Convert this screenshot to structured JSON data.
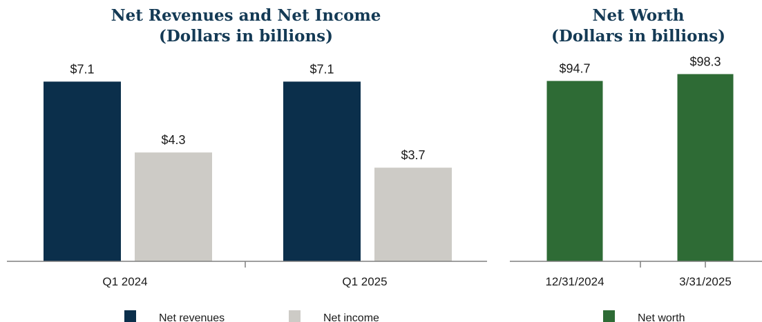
{
  "colors": {
    "net_revenues": "#0b2f4b",
    "net_income": "#cdcbc6",
    "net_worth": "#2e6b35",
    "axis": "#7f7f7f",
    "title": "#143a55"
  },
  "chart_data": [
    {
      "type": "bar",
      "title": "Net Revenues and Net Income",
      "subtitle": "(Dollars in billions)",
      "categories": [
        "Q1 2024",
        "Q1 2025"
      ],
      "series": [
        {
          "name": "Net revenues",
          "values": [
            7.1,
            7.1
          ],
          "labels": [
            "$7.1",
            "$7.1"
          ]
        },
        {
          "name": "Net income",
          "values": [
            4.3,
            3.7
          ],
          "labels": [
            "$4.3",
            "$3.7"
          ]
        }
      ],
      "ylim": [
        0,
        7.6
      ],
      "grid": false,
      "legend": "bottom"
    },
    {
      "type": "bar",
      "title": "Net Worth",
      "subtitle": "(Dollars in billions)",
      "categories": [
        "12/31/2024",
        "3/31/2025"
      ],
      "series": [
        {
          "name": "Net worth",
          "values": [
            94.7,
            98.3
          ],
          "labels": [
            "$94.7",
            "$98.3"
          ]
        }
      ],
      "ylim": [
        0,
        101
      ],
      "grid": false,
      "legend": "bottom"
    }
  ]
}
